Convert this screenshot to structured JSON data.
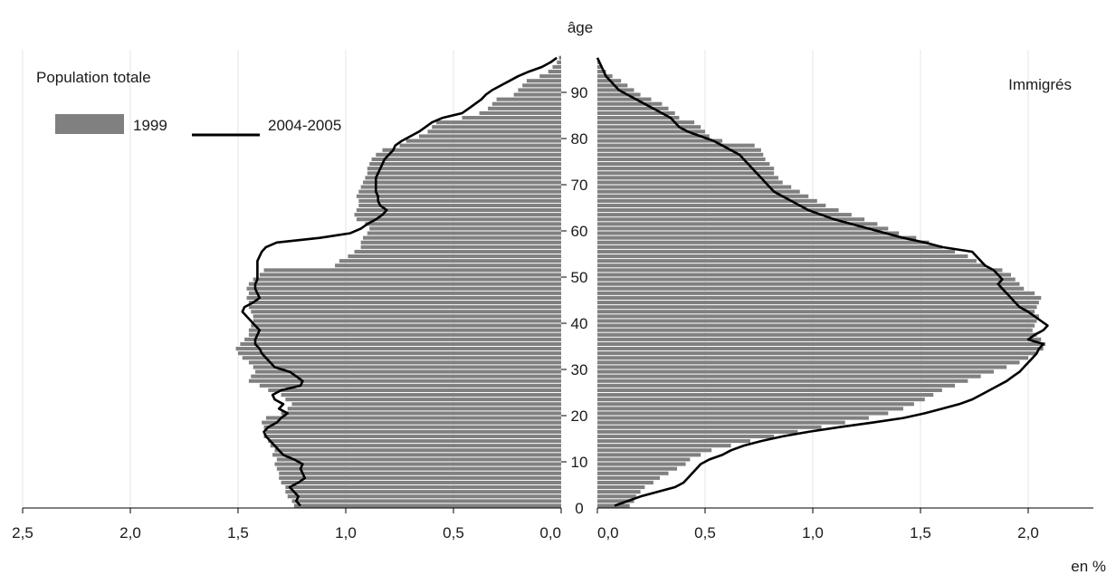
{
  "chart_data": {
    "type": "bar",
    "orientation": "horizontal",
    "layout": "population-pyramid",
    "y_axis_title": "âge",
    "x_unit_label": "en %",
    "age_ticks": [
      "0",
      "10",
      "20",
      "30",
      "40",
      "50",
      "60",
      "70",
      "80",
      "90"
    ],
    "x_ticks": [
      "0,0",
      "0,5",
      "1,0",
      "1,5",
      "2,0",
      "2,5"
    ],
    "xlim": [
      0,
      2.5
    ],
    "age_range": [
      0,
      98
    ],
    "grid": true,
    "legend": {
      "position": "top-left",
      "entries": [
        {
          "label": "1999",
          "kind": "bar",
          "color": "#808080"
        },
        {
          "label": "2004-2005",
          "kind": "line",
          "color": "#000000"
        }
      ]
    },
    "panels": [
      {
        "name": "Population totale",
        "side": "left",
        "ages": [
          0,
          1,
          2,
          3,
          4,
          5,
          6,
          7,
          8,
          9,
          10,
          11,
          12,
          13,
          14,
          15,
          16,
          17,
          18,
          19,
          20,
          21,
          22,
          23,
          24,
          25,
          26,
          27,
          28,
          29,
          30,
          31,
          32,
          33,
          34,
          35,
          36,
          37,
          38,
          39,
          40,
          41,
          42,
          43,
          44,
          45,
          46,
          47,
          48,
          49,
          50,
          51,
          52,
          53,
          54,
          55,
          56,
          57,
          58,
          59,
          60,
          61,
          62,
          63,
          64,
          65,
          66,
          67,
          68,
          69,
          70,
          71,
          72,
          73,
          74,
          75,
          76,
          77,
          78,
          79,
          80,
          81,
          82,
          83,
          84,
          85,
          86,
          87,
          88,
          89,
          90,
          91,
          92,
          93,
          94,
          95,
          96,
          97
        ],
        "series": [
          {
            "name": "1999",
            "type": "bar",
            "values": [
              1.24,
              1.25,
              1.27,
              1.28,
              1.28,
              1.3,
              1.31,
              1.31,
              1.32,
              1.33,
              1.32,
              1.34,
              1.33,
              1.35,
              1.36,
              1.38,
              1.37,
              1.38,
              1.39,
              1.37,
              1.3,
              1.27,
              1.25,
              1.28,
              1.3,
              1.36,
              1.4,
              1.45,
              1.44,
              1.42,
              1.43,
              1.45,
              1.48,
              1.5,
              1.51,
              1.49,
              1.47,
              1.45,
              1.45,
              1.44,
              1.43,
              1.43,
              1.44,
              1.45,
              1.45,
              1.46,
              1.45,
              1.46,
              1.45,
              1.43,
              1.4,
              1.38,
              1.05,
              1.03,
              0.99,
              0.96,
              0.93,
              0.93,
              0.92,
              0.9,
              0.89,
              0.91,
              0.95,
              0.96,
              0.95,
              0.94,
              0.94,
              0.95,
              0.94,
              0.93,
              0.92,
              0.91,
              0.9,
              0.9,
              0.89,
              0.88,
              0.86,
              0.83,
              0.75,
              0.72,
              0.66,
              0.62,
              0.6,
              0.58,
              0.46,
              0.38,
              0.34,
              0.32,
              0.3,
              0.22,
              0.2,
              0.18,
              0.16,
              0.1,
              0.06,
              0.04,
              0.02,
              0.01
            ]
          },
          {
            "name": "2004-2005",
            "type": "line",
            "values": [
              1.21,
              1.23,
              1.22,
              1.24,
              1.26,
              1.22,
              1.19,
              1.2,
              1.21,
              1.2,
              1.24,
              1.29,
              1.31,
              1.33,
              1.35,
              1.37,
              1.38,
              1.36,
              1.32,
              1.3,
              1.27,
              1.31,
              1.29,
              1.33,
              1.34,
              1.3,
              1.21,
              1.2,
              1.23,
              1.26,
              1.33,
              1.35,
              1.37,
              1.39,
              1.4,
              1.42,
              1.42,
              1.41,
              1.4,
              1.42,
              1.44,
              1.46,
              1.48,
              1.47,
              1.43,
              1.4,
              1.41,
              1.42,
              1.42,
              1.41,
              1.41,
              1.41,
              1.41,
              1.41,
              1.4,
              1.39,
              1.37,
              1.32,
              1.12,
              0.98,
              0.93,
              0.9,
              0.86,
              0.83,
              0.81,
              0.84,
              0.85,
              0.85,
              0.86,
              0.86,
              0.86,
              0.86,
              0.85,
              0.84,
              0.83,
              0.82,
              0.8,
              0.78,
              0.77,
              0.74,
              0.7,
              0.66,
              0.63,
              0.6,
              0.55,
              0.46,
              0.43,
              0.4,
              0.37,
              0.35,
              0.32,
              0.28,
              0.24,
              0.2,
              0.15,
              0.09,
              0.05,
              0.02
            ]
          }
        ]
      },
      {
        "name": "Immigrés",
        "side": "right",
        "ages": [
          0,
          1,
          2,
          3,
          4,
          5,
          6,
          7,
          8,
          9,
          10,
          11,
          12,
          13,
          14,
          15,
          16,
          17,
          18,
          19,
          20,
          21,
          22,
          23,
          24,
          25,
          26,
          27,
          28,
          29,
          30,
          31,
          32,
          33,
          34,
          35,
          36,
          37,
          38,
          39,
          40,
          41,
          42,
          43,
          44,
          45,
          46,
          47,
          48,
          49,
          50,
          51,
          52,
          53,
          54,
          55,
          56,
          57,
          58,
          59,
          60,
          61,
          62,
          63,
          64,
          65,
          66,
          67,
          68,
          69,
          70,
          71,
          72,
          73,
          74,
          75,
          76,
          77,
          78,
          79,
          80,
          81,
          82,
          83,
          84,
          85,
          86,
          87,
          88,
          89,
          90,
          91,
          92,
          93,
          94,
          95,
          96,
          97
        ],
        "series": [
          {
            "name": "1999",
            "type": "bar",
            "values": [
              0.15,
              0.17,
              0.18,
              0.2,
              0.22,
              0.26,
              0.29,
              0.33,
              0.37,
              0.41,
              0.43,
              0.48,
              0.53,
              0.62,
              0.71,
              0.82,
              0.93,
              1.04,
              1.15,
              1.26,
              1.35,
              1.42,
              1.47,
              1.52,
              1.56,
              1.6,
              1.66,
              1.72,
              1.78,
              1.84,
              1.9,
              1.96,
              2.0,
              2.04,
              2.07,
              2.08,
              2.06,
              2.04,
              2.02,
              2.03,
              2.04,
              2.05,
              2.03,
              2.04,
              2.05,
              2.06,
              2.03,
              1.98,
              1.96,
              1.94,
              1.92,
              1.88,
              1.8,
              1.76,
              1.72,
              1.66,
              1.6,
              1.54,
              1.48,
              1.4,
              1.35,
              1.3,
              1.24,
              1.18,
              1.12,
              1.06,
              1.02,
              0.98,
              0.94,
              0.9,
              0.86,
              0.84,
              0.82,
              0.82,
              0.8,
              0.78,
              0.77,
              0.76,
              0.73,
              0.58,
              0.52,
              0.5,
              0.48,
              0.45,
              0.38,
              0.36,
              0.33,
              0.3,
              0.25,
              0.2,
              0.17,
              0.14,
              0.11,
              0.07,
              0.04,
              0.02,
              0.01,
              0.0
            ]
          },
          {
            "name": "2004-2005",
            "type": "line",
            "values": [
              0.08,
              0.14,
              0.2,
              0.28,
              0.36,
              0.4,
              0.42,
              0.44,
              0.46,
              0.48,
              0.52,
              0.58,
              0.62,
              0.68,
              0.76,
              0.86,
              0.98,
              1.12,
              1.28,
              1.42,
              1.52,
              1.6,
              1.68,
              1.74,
              1.78,
              1.82,
              1.86,
              1.9,
              1.93,
              1.96,
              1.98,
              2.0,
              2.02,
              2.04,
              2.05,
              2.07,
              2.0,
              2.03,
              2.07,
              2.09,
              2.06,
              2.03,
              2.0,
              1.96,
              1.94,
              1.92,
              1.9,
              1.88,
              1.86,
              1.88,
              1.86,
              1.84,
              1.8,
              1.78,
              1.76,
              1.74,
              1.6,
              1.52,
              1.42,
              1.34,
              1.26,
              1.18,
              1.1,
              1.04,
              0.98,
              0.94,
              0.9,
              0.86,
              0.82,
              0.8,
              0.78,
              0.76,
              0.74,
              0.72,
              0.7,
              0.68,
              0.66,
              0.62,
              0.58,
              0.54,
              0.48,
              0.42,
              0.38,
              0.36,
              0.34,
              0.3,
              0.26,
              0.22,
              0.18,
              0.14,
              0.1,
              0.08,
              0.06,
              0.04,
              0.03,
              0.02,
              0.01,
              0.0
            ]
          }
        ]
      }
    ]
  },
  "colors": {
    "bar": "#808080",
    "line": "#000000",
    "grid": "#e4e4e4",
    "axis": "#000000",
    "text": "#1a1a1a"
  }
}
